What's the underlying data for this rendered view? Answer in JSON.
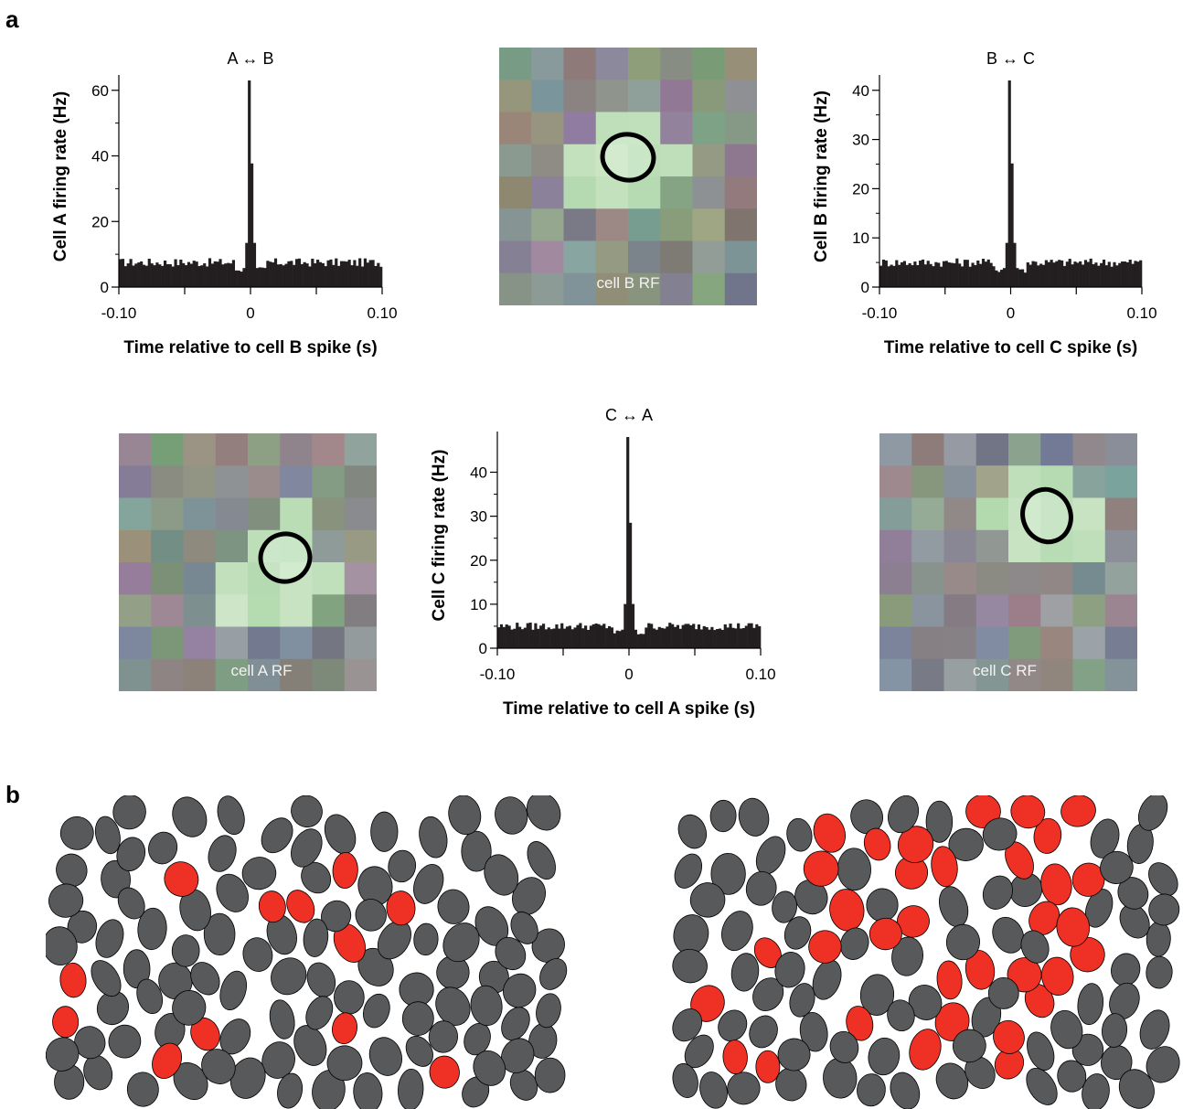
{
  "panels": {
    "a": "a",
    "b": "b"
  },
  "chart_data": [
    {
      "type": "bar",
      "title": "A ↔ B",
      "xlabel": "Time relative to cell B spike (s)",
      "ylabel": "Cell A firing rate (Hz)",
      "xlim": [
        -0.1,
        0.1
      ],
      "ylim": [
        0,
        63
      ],
      "xticks": [
        -0.1,
        0,
        0.1
      ],
      "xtick_labels": [
        "-0.10",
        "0",
        "0.10"
      ],
      "yticks": [
        0,
        20,
        40,
        60
      ],
      "ytick_labels": [
        "0",
        "20",
        "40",
        "60"
      ],
      "peak": 63,
      "baseline": 7.5,
      "bin_count": 100
    },
    {
      "type": "bar",
      "title": "B ↔ C",
      "xlabel": "Time relative to cell C spike (s)",
      "ylabel": "Cell B firing rate (Hz)",
      "xlim": [
        -0.1,
        0.1
      ],
      "ylim": [
        0,
        42
      ],
      "xticks": [
        -0.1,
        0,
        0.1
      ],
      "xtick_labels": [
        "-0.10",
        "0",
        "0.10"
      ],
      "yticks": [
        0,
        10,
        20,
        30,
        40
      ],
      "ytick_labels": [
        "0",
        "10",
        "20",
        "30",
        "40"
      ],
      "peak": 42,
      "baseline": 5,
      "bin_count": 100
    },
    {
      "type": "bar",
      "title": "C ↔ A",
      "xlabel": "Time relative to cell A spike (s)",
      "ylabel": "Cell C firing rate (Hz)",
      "xlim": [
        -0.1,
        0.1
      ],
      "ylim": [
        0,
        48
      ],
      "xticks": [
        -0.1,
        0,
        0.1
      ],
      "xtick_labels": [
        "-0.10",
        "0",
        "0.10"
      ],
      "yticks": [
        0,
        10,
        20,
        30,
        40
      ],
      "ytick_labels": [
        "0",
        "10",
        "20",
        "30",
        "40"
      ],
      "peak": 48,
      "baseline": 5,
      "bin_count": 100
    }
  ],
  "receptive_fields": [
    {
      "label": "cell B RF",
      "hot_cells": [
        [
          3,
          2
        ],
        [
          4,
          2
        ],
        [
          3,
          3
        ],
        [
          4,
          3
        ],
        [
          5,
          3
        ],
        [
          3,
          4
        ],
        [
          4,
          4
        ],
        [
          2,
          3
        ],
        [
          2,
          4
        ]
      ]
    },
    {
      "label": "cell A RF",
      "hot_cells": [
        [
          4,
          3
        ],
        [
          5,
          3
        ],
        [
          4,
          4
        ],
        [
          5,
          4
        ],
        [
          3,
          4
        ],
        [
          6,
          4
        ],
        [
          3,
          5
        ],
        [
          4,
          5
        ],
        [
          5,
          5
        ],
        [
          5,
          2
        ]
      ]
    },
    {
      "label": "cell C RF",
      "hot_cells": [
        [
          4,
          1
        ],
        [
          5,
          1
        ],
        [
          4,
          2
        ],
        [
          5,
          2
        ],
        [
          6,
          2
        ],
        [
          4,
          3
        ],
        [
          5,
          3
        ],
        [
          6,
          3
        ],
        [
          3,
          2
        ]
      ]
    }
  ],
  "colors": {
    "bars": "#231f20",
    "cell_gray": "#58595b",
    "cell_red": "#ee3124",
    "rf_hot": "#9ed39a",
    "rf_center": "#ddf0dd"
  },
  "cell_maps": [
    {
      "red_fraction": 0.22
    },
    {
      "red_fraction": 0.27
    }
  ]
}
